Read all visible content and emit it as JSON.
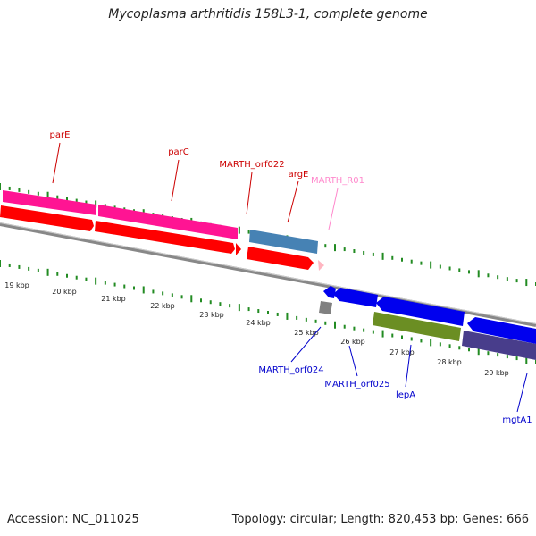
{
  "title": "Mycoplasma arthritidis 158L3-1, complete genome",
  "footer": {
    "accession": "Accession: NC_011025",
    "summary": "Topology: circular; Length: 820,453 bp; Genes: 666"
  },
  "colors": {
    "forward_cds": "#ff0000",
    "forward_gene": "#ff1493",
    "steelblue_feature": "#4682b4",
    "rna_feature": "#ffb6c1",
    "reverse_cds": "#0000ee",
    "lepA_feature": "#6b8e23",
    "mgtA1_feature": "#483d8b",
    "grey_feature": "#808080",
    "backbone": "#888888",
    "ticks": "#228b22",
    "label_forward": "#cc0000",
    "label_rna": "#ff88cc",
    "label_reverse": "#0000cc"
  },
  "scale_labels": [
    "19 kbp",
    "20 kbp",
    "21 kbp",
    "22 kbp",
    "23 kbp",
    "24 kbp",
    "25 kbp",
    "26 kbp",
    "27 kbp",
    "28 kbp",
    "29 kbp"
  ],
  "labels_top": [
    {
      "text": "parE",
      "color": "label_forward"
    },
    {
      "text": "parC",
      "color": "label_forward"
    },
    {
      "text": "MARTH_orf022",
      "color": "label_forward"
    },
    {
      "text": "argE",
      "color": "label_forward"
    },
    {
      "text": "MARTH_R01",
      "color": "label_rna"
    }
  ],
  "labels_bottom": [
    {
      "text": "MARTH_orf024",
      "color": "label_reverse"
    },
    {
      "text": "MARTH_orf025",
      "color": "label_reverse"
    },
    {
      "text": "lepA",
      "color": "label_reverse"
    },
    {
      "text": "mgtA1",
      "color": "label_reverse"
    }
  ]
}
